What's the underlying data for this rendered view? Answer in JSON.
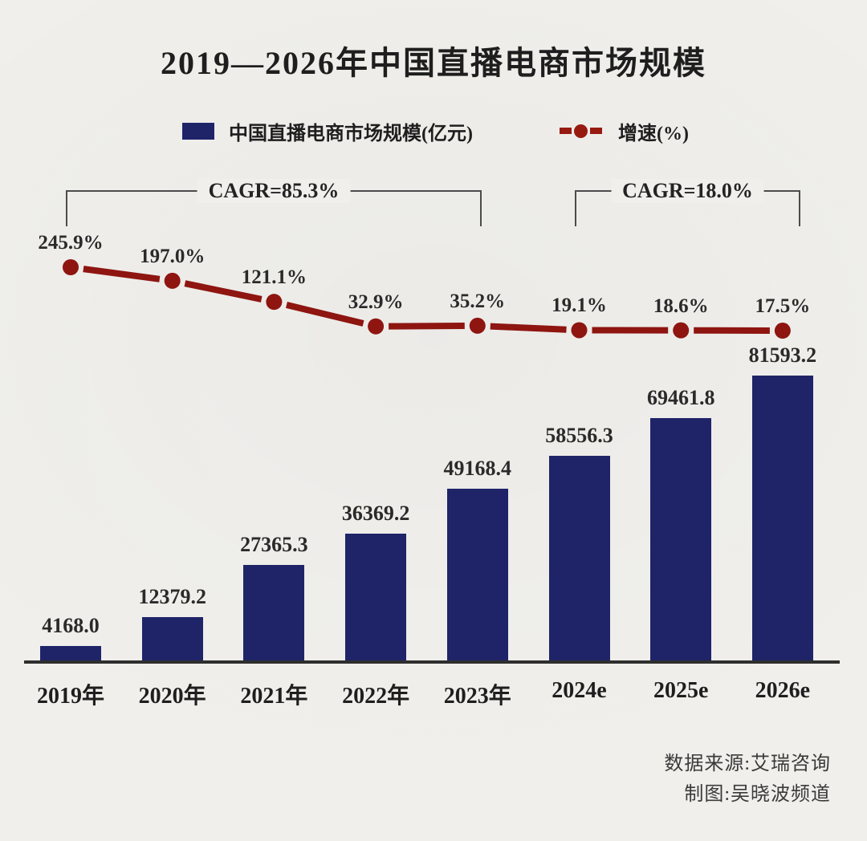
{
  "title": "2019—2026年中国直播电商市场规模",
  "legend": {
    "bars_label": "中国直播电商市场规模(亿元)",
    "line_label": "增速(%)"
  },
  "annotations": [
    {
      "label": "CAGR=85.3%",
      "covers": "2019年-2023年"
    },
    {
      "label": "CAGR=18.0%",
      "covers": "2024e-2026e"
    }
  ],
  "chart_data": {
    "type": "bar",
    "title": "2019—2026年中国直播电商市场规模",
    "categories": [
      "2019年",
      "2020年",
      "2021年",
      "2022年",
      "2023年",
      "2024e",
      "2025e",
      "2026e"
    ],
    "series": [
      {
        "name": "中国直播电商市场规模(亿元)",
        "type": "bar",
        "color": "#1f2468",
        "values": [
          4168.0,
          12379.2,
          27365.3,
          36369.2,
          49168.4,
          58556.3,
          69461.8,
          81593.2
        ]
      },
      {
        "name": "增速(%)",
        "type": "line",
        "color": "#8e1510",
        "values": [
          245.9,
          197.0,
          121.1,
          32.9,
          35.2,
          19.1,
          18.6,
          17.5
        ]
      }
    ],
    "bar_labels": [
      "4168.0",
      "12379.2",
      "27365.3",
      "36369.2",
      "49168.4",
      "58556.3",
      "69461.8",
      "81593.2"
    ],
    "line_labels": [
      "245.9%",
      "197.0%",
      "121.1%",
      "32.9%",
      "35.2%",
      "19.1%",
      "18.6%",
      "17.5%"
    ],
    "xlabel": "",
    "ylabel": "",
    "grid": false,
    "legend_position": "top"
  },
  "footer": {
    "source": "数据来源:艾瑞咨询",
    "credit": "制图:吴晓波频道"
  },
  "colors": {
    "background": "#f0efec",
    "bar": "#1f2468",
    "line": "#8e1510",
    "text": "#1e1e1e",
    "axis": "#2e2e2e"
  }
}
